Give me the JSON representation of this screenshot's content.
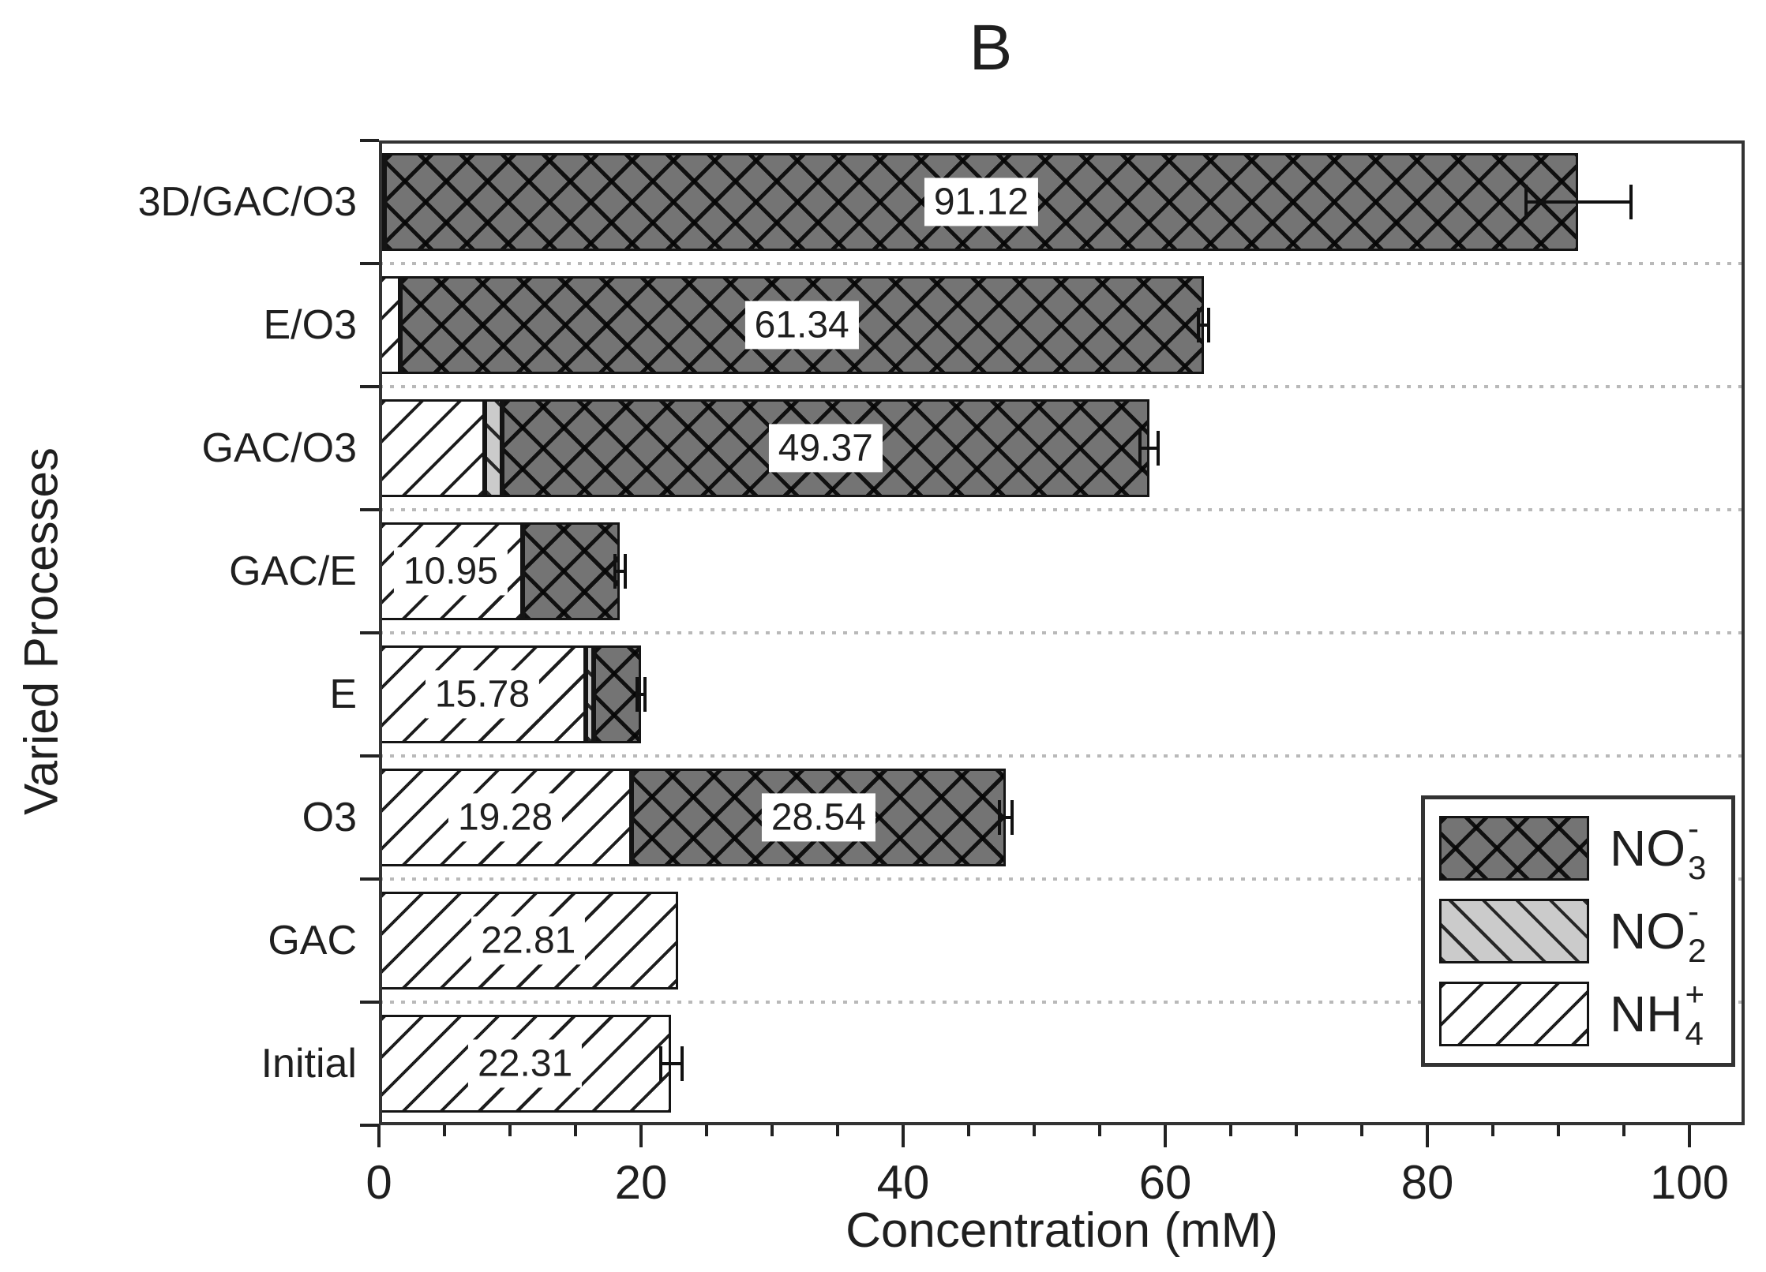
{
  "colors": {
    "no3_fill": "#747474",
    "no2_fill": "#cbcbcb",
    "nh4_fill": "#ffffff",
    "hatch": "#141414",
    "frame": "#333333",
    "grid_dots": "#b9b9b9",
    "text": "#1f1f1f",
    "label_box_bg": "#ffffff"
  },
  "legend": {
    "items": [
      {
        "key": "no3",
        "main": "NO",
        "sub": "3",
        "sup": "-"
      },
      {
        "key": "no2",
        "main": "NO",
        "sub": "2",
        "sup": "-"
      },
      {
        "key": "nh4",
        "main": "NH",
        "sub": "4",
        "sup": "+"
      }
    ]
  },
  "chart_data": {
    "type": "bar",
    "orientation": "horizontal",
    "stacked": true,
    "title": "B",
    "xlabel": "Concentration (mM)",
    "ylabel": "Varied Processes",
    "xlim": [
      0,
      104.2
    ],
    "x_major_ticks": [
      0,
      20,
      40,
      60,
      80,
      100
    ],
    "x_minor_tick_step": 5,
    "grid": "dotted horizontal lines at category boundaries",
    "legend_position": "lower right",
    "categories_top_to_bottom": [
      "3D/GAC/O3",
      "E/O3",
      "GAC/O3",
      "GAC/E",
      "E",
      "O3",
      "GAC",
      "Initial"
    ],
    "series": [
      {
        "name": "NH4+",
        "key": "nh4",
        "pattern": "white with diagonal-up hatch",
        "values": [
          0.4,
          1.6,
          8.1,
          10.95,
          15.78,
          19.28,
          22.81,
          22.31
        ]
      },
      {
        "name": "NO2-",
        "key": "no2",
        "pattern": "light gray with diagonal-down hatch",
        "values": [
          0,
          0,
          1.3,
          0,
          0.6,
          0,
          0,
          0
        ]
      },
      {
        "name": "NO3-",
        "key": "no3",
        "pattern": "dark gray with crosshatch",
        "values": [
          91.12,
          61.34,
          49.37,
          7.45,
          3.6,
          28.54,
          0,
          0
        ]
      }
    ],
    "bar_value_labels": [
      {
        "category_index": 0,
        "series_key": "no3",
        "text": "91.12"
      },
      {
        "category_index": 1,
        "series_key": "no3",
        "text": "61.34"
      },
      {
        "category_index": 2,
        "series_key": "no3",
        "text": "49.37"
      },
      {
        "category_index": 3,
        "series_key": "nh4",
        "text": "10.95"
      },
      {
        "category_index": 4,
        "series_key": "nh4",
        "text": "15.78"
      },
      {
        "category_index": 5,
        "series_key": "nh4",
        "text": "19.28"
      },
      {
        "category_index": 5,
        "series_key": "no3",
        "text": "28.54"
      },
      {
        "category_index": 6,
        "series_key": "nh4",
        "text": "22.81"
      },
      {
        "category_index": 7,
        "series_key": "nh4",
        "text": "22.31"
      }
    ],
    "error_bars_on_totals": [
      4.0,
      0.4,
      0.7,
      0.4,
      0.3,
      0.5,
      0,
      0.8
    ]
  }
}
